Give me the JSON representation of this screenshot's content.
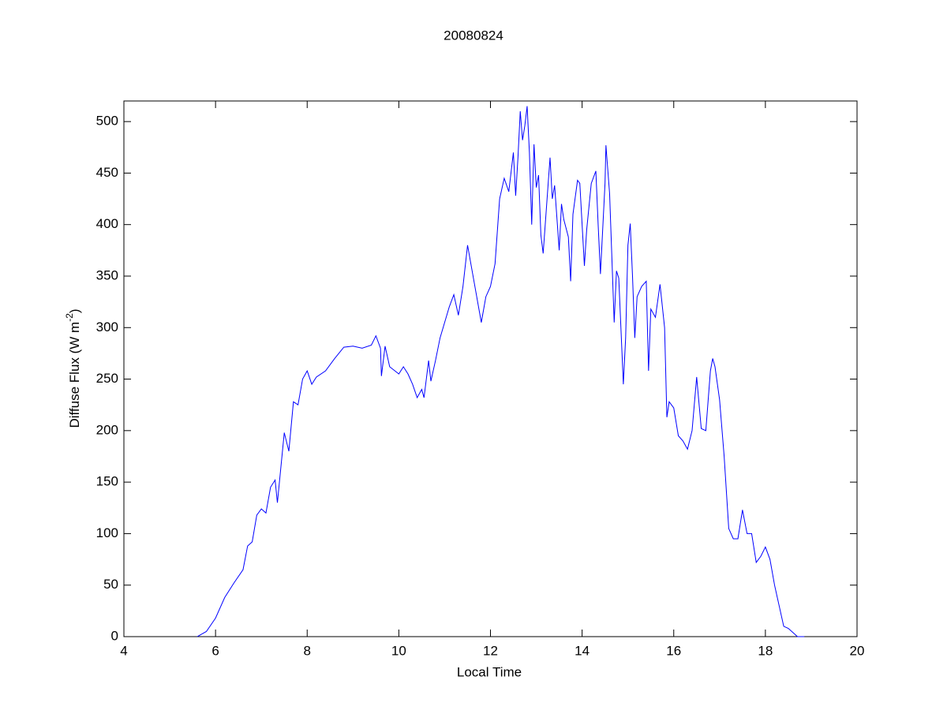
{
  "chart_data": {
    "type": "line",
    "title": "20080824",
    "xlabel": "Local Time",
    "ylabel": {
      "text": "Diffuse Flux (W m",
      "superscript": "-2",
      "close": ")"
    },
    "xlim": [
      4,
      20
    ],
    "ylim": [
      0,
      520
    ],
    "xticks": [
      4,
      6,
      8,
      10,
      12,
      14,
      16,
      18,
      20
    ],
    "yticks": [
      0,
      50,
      100,
      150,
      200,
      250,
      300,
      350,
      400,
      450,
      500
    ],
    "series": [
      {
        "color": "#0000ff",
        "x": [
          5.6,
          5.8,
          6.0,
          6.2,
          6.4,
          6.6,
          6.7,
          6.8,
          6.9,
          7.0,
          7.1,
          7.2,
          7.3,
          7.35,
          7.5,
          7.6,
          7.7,
          7.8,
          7.9,
          8.0,
          8.1,
          8.2,
          8.4,
          8.6,
          8.8,
          9.0,
          9.2,
          9.4,
          9.5,
          9.6,
          9.62,
          9.7,
          9.8,
          10.0,
          10.1,
          10.2,
          10.3,
          10.4,
          10.5,
          10.55,
          10.65,
          10.7,
          10.8,
          10.9,
          11.0,
          11.1,
          11.2,
          11.3,
          11.4,
          11.5,
          11.6,
          11.7,
          11.8,
          11.9,
          12.0,
          12.1,
          12.2,
          12.3,
          12.4,
          12.5,
          12.55,
          12.6,
          12.65,
          12.7,
          12.75,
          12.8,
          12.85,
          12.9,
          12.95,
          13.0,
          13.05,
          13.1,
          13.15,
          13.3,
          13.35,
          13.4,
          13.5,
          13.55,
          13.6,
          13.7,
          13.75,
          13.8,
          13.9,
          13.95,
          14.0,
          14.05,
          14.1,
          14.2,
          14.3,
          14.35,
          14.4,
          14.5,
          14.52,
          14.6,
          14.7,
          14.75,
          14.8,
          14.9,
          14.95,
          15.0,
          15.05,
          15.1,
          15.15,
          15.2,
          15.3,
          15.4,
          15.45,
          15.5,
          15.6,
          15.7,
          15.8,
          15.85,
          15.9,
          16.0,
          16.1,
          16.2,
          16.3,
          16.4,
          16.5,
          16.6,
          16.7,
          16.8,
          16.85,
          16.9,
          17.0,
          17.1,
          17.2,
          17.3,
          17.4,
          17.5,
          17.6,
          17.7,
          17.8,
          17.9,
          18.0,
          18.1,
          18.2,
          18.3,
          18.4,
          18.5,
          18.6,
          18.7,
          18.85
        ],
        "values": [
          0,
          5,
          18,
          38,
          52,
          65,
          88,
          92,
          118,
          124,
          120,
          145,
          152,
          130,
          198,
          180,
          228,
          225,
          250,
          258,
          245,
          252,
          258,
          270,
          281,
          282,
          280,
          283,
          292,
          280,
          253,
          282,
          262,
          255,
          262,
          255,
          245,
          232,
          240,
          232,
          268,
          248,
          268,
          290,
          305,
          320,
          332,
          312,
          340,
          380,
          355,
          330,
          305,
          330,
          340,
          362,
          425,
          445,
          432,
          470,
          428,
          465,
          510,
          482,
          496,
          515,
          470,
          400,
          478,
          436,
          448,
          390,
          372,
          465,
          425,
          438,
          375,
          420,
          405,
          388,
          345,
          410,
          443,
          440,
          400,
          360,
          395,
          440,
          452,
          400,
          352,
          440,
          477,
          430,
          305,
          355,
          348,
          245,
          290,
          380,
          401,
          350,
          290,
          330,
          340,
          345,
          258,
          318,
          310,
          342,
          300,
          213,
          228,
          222,
          195,
          190,
          182,
          200,
          252,
          202,
          200,
          258,
          270,
          262,
          230,
          175,
          105,
          95,
          95,
          123,
          100,
          100,
          72,
          78,
          87,
          75,
          50,
          30,
          10,
          8,
          4,
          0,
          0
        ]
      }
    ]
  }
}
